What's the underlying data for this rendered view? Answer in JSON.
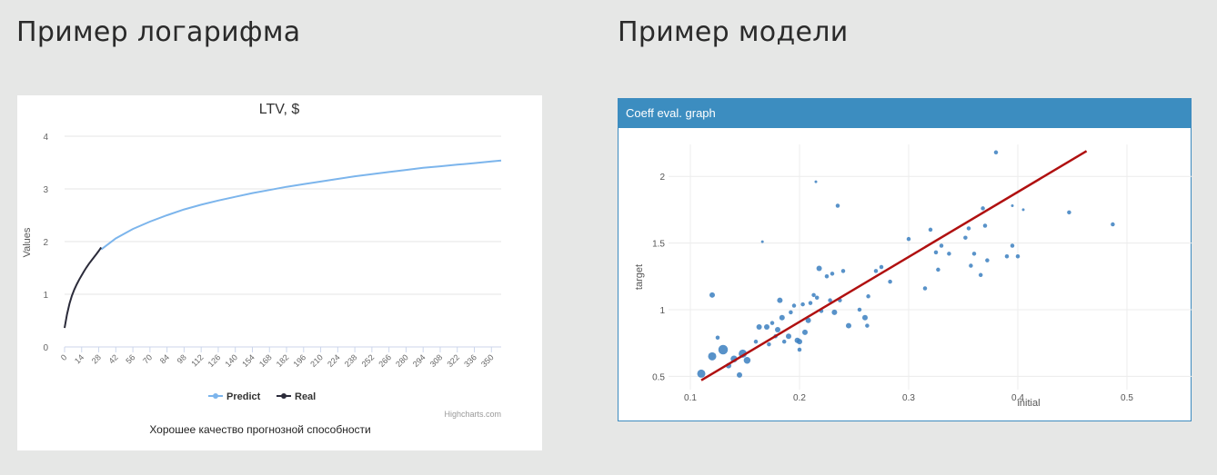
{
  "headings": {
    "left": "Пример логарифма",
    "right": "Пример модели"
  },
  "ltv_panel": {
    "caption": "Хорошее качество прогнозной способности",
    "credits": "Highcharts.com"
  },
  "coeff_panel": {
    "header": "Coeff eval. graph"
  },
  "colors": {
    "predict": "#7cb5ec",
    "real": "#2b2b3a",
    "points": "#3b7fc0",
    "regression": "#b01010",
    "panel_header": "#3c8dc0"
  },
  "chart_data": [
    {
      "type": "line",
      "title": "LTV, $",
      "xlabel": "",
      "ylabel": "Values",
      "x_ticks": [
        0,
        14,
        28,
        42,
        56,
        70,
        84,
        98,
        112,
        126,
        140,
        154,
        168,
        182,
        196,
        210,
        224,
        238,
        252,
        266,
        280,
        294,
        308,
        322,
        336,
        350
      ],
      "ylim": [
        0,
        4
      ],
      "y_ticks": [
        0,
        1,
        2,
        3,
        4
      ],
      "grid": true,
      "legend": "bottom-center",
      "series": [
        {
          "name": "Predict",
          "x": [
            30,
            42,
            56,
            70,
            84,
            98,
            112,
            126,
            140,
            154,
            168,
            182,
            196,
            210,
            224,
            238,
            252,
            266,
            280,
            294,
            308,
            322,
            336,
            350,
            358
          ],
          "values": [
            1.85,
            2.06,
            2.24,
            2.38,
            2.5,
            2.61,
            2.7,
            2.78,
            2.85,
            2.92,
            2.98,
            3.04,
            3.09,
            3.14,
            3.19,
            3.24,
            3.28,
            3.32,
            3.36,
            3.4,
            3.43,
            3.46,
            3.49,
            3.52,
            3.54
          ]
        },
        {
          "name": "Real",
          "x": [
            0,
            2,
            4,
            6,
            8,
            10,
            12,
            14,
            16,
            18,
            20,
            22,
            24,
            26,
            28,
            30
          ],
          "values": [
            0.36,
            0.62,
            0.82,
            0.97,
            1.09,
            1.19,
            1.28,
            1.36,
            1.44,
            1.51,
            1.58,
            1.64,
            1.7,
            1.76,
            1.82,
            1.89
          ]
        }
      ]
    },
    {
      "type": "scatter",
      "title": "",
      "xlabel": "initial",
      "ylabel": "target",
      "x_ticks": [
        0.1,
        0.2,
        0.3,
        0.4,
        0.5
      ],
      "y_ticks": [
        0.5,
        1,
        1.5,
        2
      ],
      "xlim": [
        0.08,
        0.56
      ],
      "ylim": [
        0.4,
        2.24
      ],
      "grid": true,
      "regression_line": {
        "x": [
          0.11,
          0.463
        ],
        "y": [
          0.47,
          2.19
        ]
      },
      "points": [
        {
          "x": 0.11,
          "y": 0.52,
          "s": 6
        },
        {
          "x": 0.12,
          "y": 1.11,
          "s": 4
        },
        {
          "x": 0.12,
          "y": 0.65,
          "s": 6
        },
        {
          "x": 0.125,
          "y": 0.79,
          "s": 3
        },
        {
          "x": 0.13,
          "y": 0.7,
          "s": 7
        },
        {
          "x": 0.135,
          "y": 0.58,
          "s": 4
        },
        {
          "x": 0.14,
          "y": 0.63,
          "s": 5
        },
        {
          "x": 0.145,
          "y": 0.51,
          "s": 4
        },
        {
          "x": 0.148,
          "y": 0.67,
          "s": 6
        },
        {
          "x": 0.152,
          "y": 0.62,
          "s": 5
        },
        {
          "x": 0.16,
          "y": 0.76,
          "s": 3
        },
        {
          "x": 0.163,
          "y": 0.87,
          "s": 4
        },
        {
          "x": 0.166,
          "y": 1.51,
          "s": 2
        },
        {
          "x": 0.17,
          "y": 0.87,
          "s": 4
        },
        {
          "x": 0.172,
          "y": 0.74,
          "s": 3
        },
        {
          "x": 0.175,
          "y": 0.9,
          "s": 3
        },
        {
          "x": 0.178,
          "y": 0.8,
          "s": 3
        },
        {
          "x": 0.18,
          "y": 0.85,
          "s": 4
        },
        {
          "x": 0.182,
          "y": 1.07,
          "s": 4
        },
        {
          "x": 0.184,
          "y": 0.94,
          "s": 4
        },
        {
          "x": 0.186,
          "y": 0.76,
          "s": 3
        },
        {
          "x": 0.19,
          "y": 0.8,
          "s": 4
        },
        {
          "x": 0.192,
          "y": 0.98,
          "s": 3
        },
        {
          "x": 0.195,
          "y": 1.03,
          "s": 3
        },
        {
          "x": 0.198,
          "y": 0.77,
          "s": 4
        },
        {
          "x": 0.2,
          "y": 0.7,
          "s": 3
        },
        {
          "x": 0.2,
          "y": 0.76,
          "s": 4
        },
        {
          "x": 0.203,
          "y": 1.04,
          "s": 3
        },
        {
          "x": 0.205,
          "y": 0.83,
          "s": 4
        },
        {
          "x": 0.208,
          "y": 0.92,
          "s": 4
        },
        {
          "x": 0.21,
          "y": 1.05,
          "s": 3
        },
        {
          "x": 0.213,
          "y": 1.11,
          "s": 3
        },
        {
          "x": 0.215,
          "y": 1.96,
          "s": 2
        },
        {
          "x": 0.216,
          "y": 1.09,
          "s": 3
        },
        {
          "x": 0.218,
          "y": 1.31,
          "s": 4
        },
        {
          "x": 0.22,
          "y": 0.99,
          "s": 3
        },
        {
          "x": 0.225,
          "y": 1.25,
          "s": 3
        },
        {
          "x": 0.228,
          "y": 1.07,
          "s": 3
        },
        {
          "x": 0.23,
          "y": 1.27,
          "s": 3
        },
        {
          "x": 0.232,
          "y": 0.98,
          "s": 4
        },
        {
          "x": 0.235,
          "y": 1.78,
          "s": 3
        },
        {
          "x": 0.237,
          "y": 1.07,
          "s": 3
        },
        {
          "x": 0.24,
          "y": 1.29,
          "s": 3
        },
        {
          "x": 0.245,
          "y": 0.88,
          "s": 4
        },
        {
          "x": 0.255,
          "y": 1.0,
          "s": 3
        },
        {
          "x": 0.26,
          "y": 0.94,
          "s": 4
        },
        {
          "x": 0.262,
          "y": 0.88,
          "s": 3
        },
        {
          "x": 0.263,
          "y": 1.1,
          "s": 3
        },
        {
          "x": 0.27,
          "y": 1.29,
          "s": 3
        },
        {
          "x": 0.275,
          "y": 1.32,
          "s": 3
        },
        {
          "x": 0.283,
          "y": 1.21,
          "s": 3
        },
        {
          "x": 0.3,
          "y": 1.53,
          "s": 3
        },
        {
          "x": 0.315,
          "y": 1.16,
          "s": 3
        },
        {
          "x": 0.32,
          "y": 1.6,
          "s": 3
        },
        {
          "x": 0.325,
          "y": 1.43,
          "s": 3
        },
        {
          "x": 0.327,
          "y": 1.3,
          "s": 3
        },
        {
          "x": 0.33,
          "y": 1.48,
          "s": 3
        },
        {
          "x": 0.337,
          "y": 1.42,
          "s": 3
        },
        {
          "x": 0.352,
          "y": 1.54,
          "s": 3
        },
        {
          "x": 0.355,
          "y": 1.61,
          "s": 3
        },
        {
          "x": 0.357,
          "y": 1.33,
          "s": 3
        },
        {
          "x": 0.36,
          "y": 1.42,
          "s": 3
        },
        {
          "x": 0.366,
          "y": 1.26,
          "s": 3
        },
        {
          "x": 0.368,
          "y": 1.76,
          "s": 3
        },
        {
          "x": 0.37,
          "y": 1.63,
          "s": 3
        },
        {
          "x": 0.372,
          "y": 1.37,
          "s": 3
        },
        {
          "x": 0.38,
          "y": 2.18,
          "s": 3
        },
        {
          "x": 0.39,
          "y": 1.4,
          "s": 3
        },
        {
          "x": 0.395,
          "y": 1.48,
          "s": 3
        },
        {
          "x": 0.395,
          "y": 1.78,
          "s": 2
        },
        {
          "x": 0.4,
          "y": 1.4,
          "s": 3
        },
        {
          "x": 0.405,
          "y": 1.75,
          "s": 2
        },
        {
          "x": 0.447,
          "y": 1.73,
          "s": 3
        },
        {
          "x": 0.487,
          "y": 1.64,
          "s": 3
        }
      ]
    }
  ]
}
